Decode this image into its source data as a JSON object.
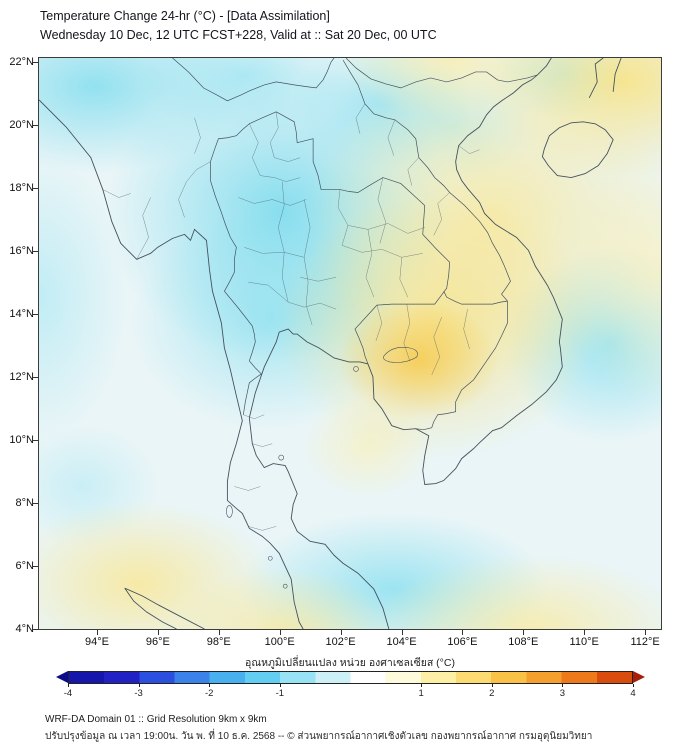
{
  "header": {
    "title": "Temperature Change 24-hr (°C) - [Data Assimilation]",
    "subtitle": "Wednesday 10 Dec, 12 UTC FCST+228, Valid at :: Sat 20 Dec, 00 UTC"
  },
  "map": {
    "lat_ticks": [
      "22°N",
      "20°N",
      "18°N",
      "16°N",
      "14°N",
      "12°N",
      "10°N",
      "8°N",
      "6°N",
      "4°N"
    ],
    "lon_ticks": [
      "94°E",
      "96°E",
      "98°E",
      "100°E",
      "102°E",
      "104°E",
      "106°E",
      "108°E",
      "110°E",
      "112°E"
    ],
    "field_palette": {
      "cooling": "#76dAed",
      "warming": "#fbe68c",
      "neutral": "#e9f5f7"
    }
  },
  "colorbar": {
    "label": "อุณหภูมิเปลี่ยนแปลง หน่วย องศาเซลเซียส (°C)",
    "range": [
      -4,
      4
    ],
    "ticks": [
      -4,
      -3,
      -2,
      -1,
      1,
      2,
      3,
      4
    ],
    "segment_colors": [
      "#1616aa",
      "#2121c4",
      "#2b4fde",
      "#3b82ea",
      "#49b0f0",
      "#63cef2",
      "#97e2f4",
      "#cdf0f7",
      "#ffffff",
      "#fefadc",
      "#fdefa6",
      "#fcdc72",
      "#f9c246",
      "#f5a02c",
      "#ee791b",
      "#da4c0e"
    ],
    "arrow_left_color": "#0c0c86",
    "arrow_right_color": "#a81f09"
  },
  "footer": {
    "domain_info": "WRF-DA Domain 01 :: Grid Resolution 9km x 9km",
    "update_info": "ปรับปรุงข้อมูล ณ เวลา 19:00น. วัน พ. ที่ 10 ธ.ค. 2568 -- © ส่วนพยากรณ์อากาศเชิงตัวเลข กองพยากรณ์อากาศ กรมอุตุนิยมวิทยา"
  }
}
